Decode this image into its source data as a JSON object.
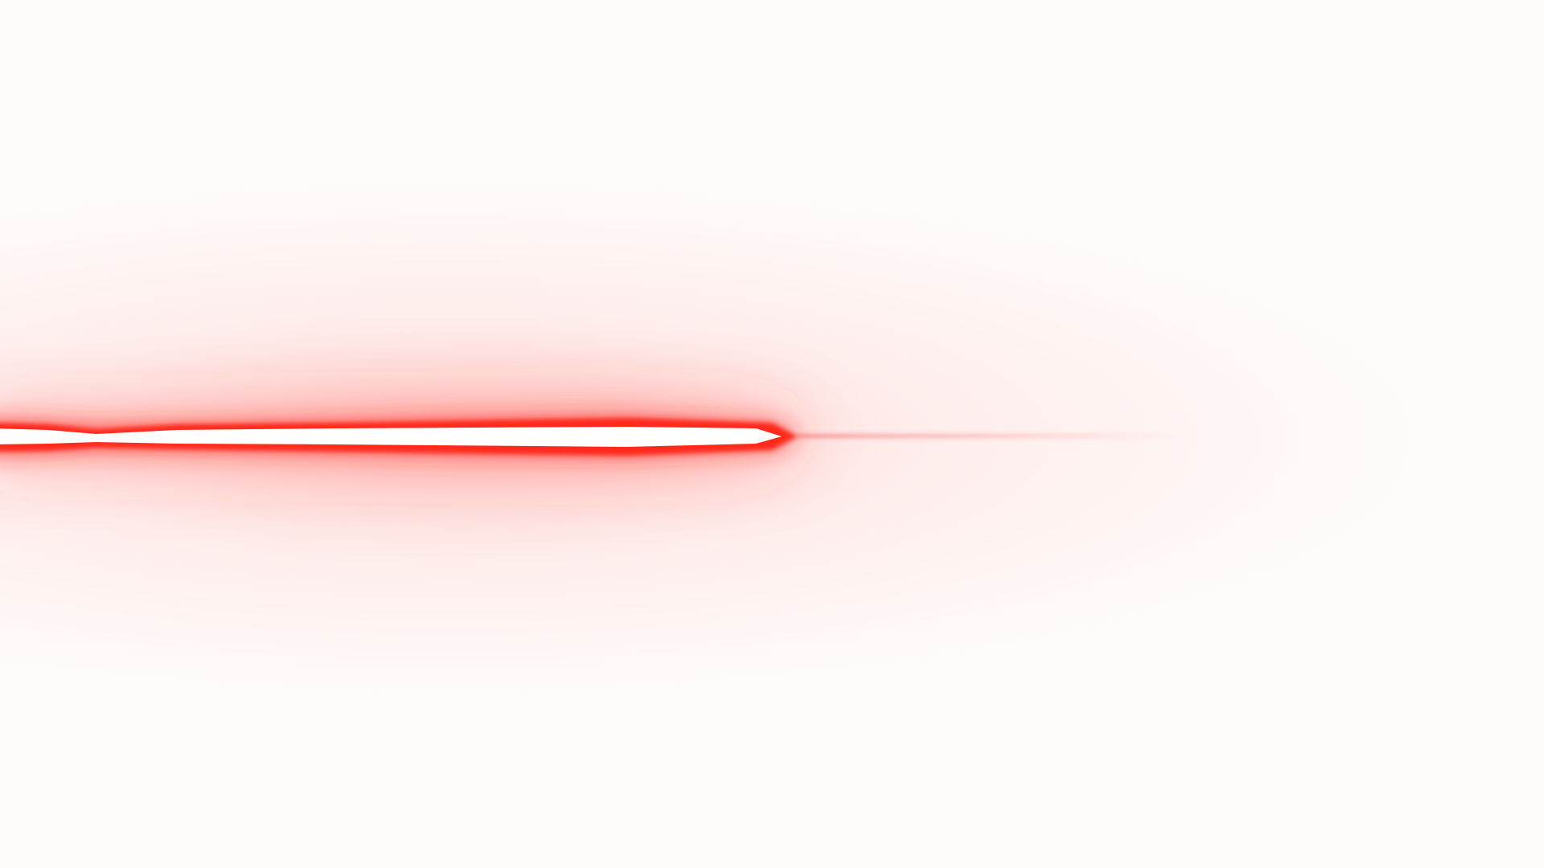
{
  "scene": {
    "subject": "laser-beam",
    "colors": {
      "background": "#fefcfb",
      "beam_core": "#ffffff",
      "beam_edge": "#ff2a1f",
      "glow": "#ff3b30",
      "trail": "#f04a4a"
    }
  }
}
